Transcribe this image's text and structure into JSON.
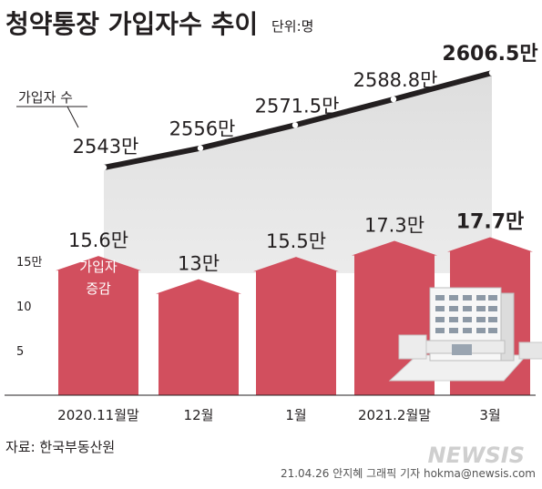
{
  "header": {
    "title": "청약통장 가입자수 추이",
    "unit": "단위:명"
  },
  "chart_data": [
    {
      "type": "line",
      "title": "",
      "series": [
        {
          "name": "가입자 수",
          "values": [
            2543,
            2556,
            2571.5,
            2588.8,
            2606.5
          ]
        }
      ],
      "categories": [
        "2020.11월말",
        "12월",
        "1월",
        "2021.2월말",
        "3월"
      ],
      "data_labels": [
        "2543만",
        "2556만",
        "2571.5만",
        "2588.8만",
        "2606.5만"
      ],
      "unit": "만 명",
      "grid": false
    },
    {
      "type": "bar",
      "title": "",
      "categories": [
        "2020.11월말",
        "12월",
        "1월",
        "2021.2월말",
        "3월"
      ],
      "series": [
        {
          "name": "가입자 증감",
          "values": [
            15.6,
            13,
            15.5,
            17.3,
            17.7
          ]
        }
      ],
      "data_labels": [
        "15.6만",
        "13만",
        "15.5만",
        "17.3만",
        "17.7만"
      ],
      "y_ticks": [
        {
          "value": 15,
          "label": "15만"
        },
        {
          "value": 10,
          "label": "10"
        },
        {
          "value": 5,
          "label": "5"
        }
      ],
      "ylim": [
        0,
        17.7
      ],
      "grid": false
    }
  ],
  "series_label_bar": [
    "가입자",
    "증감"
  ],
  "colors": {
    "bar": "#d24f5e",
    "line": "#231f20",
    "marker": "#ffffff",
    "title": "#231f20",
    "grey_band": "#d9d9d9"
  },
  "footer": {
    "source": "자료: 한국부동산원",
    "credit": "21.04.26 안지혜 그래픽 기자 hokma@newsis.com",
    "watermark": "NEWSIS"
  }
}
